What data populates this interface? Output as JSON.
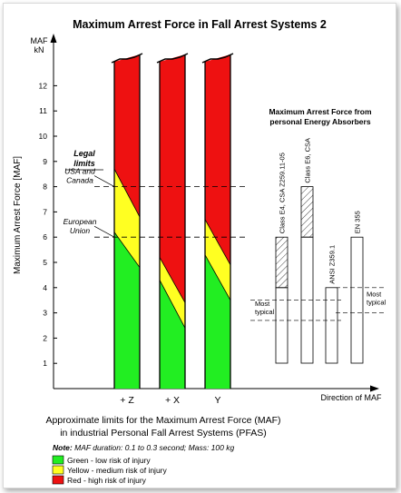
{
  "chart_data": {
    "type": "bar",
    "title": "Maximum Arrest Force in Fall Arrest Systems 2",
    "ylabel": "Maximum Arrest Force [MAF]",
    "y_unit_top": "MAF",
    "y_unit_bottom": "kN",
    "xlabel": "Direction of MAF",
    "ylim": [
      0,
      12.5
    ],
    "y_ticks": [
      1,
      2,
      3,
      4,
      5,
      6,
      7,
      8,
      9,
      10,
      11,
      12
    ],
    "directions": [
      {
        "label": "+ Z",
        "green": {
          "left": 6.2,
          "right": 4.8
        },
        "yellow": {
          "left": 8.7,
          "right": 6.8
        },
        "red": {
          "left": 12.7,
          "right": 10.5
        }
      },
      {
        "label": "+ X",
        "green": {
          "left": 4.3,
          "right": 2.4
        },
        "yellow": {
          "left": 5.2,
          "right": 3.4
        },
        "red": {
          "left": 12.5,
          "right": 12.5
        }
      },
      {
        "label": "Y",
        "green": {
          "left": 5.3,
          "right": 3.5
        },
        "yellow": {
          "left": 6.7,
          "right": 4.9
        },
        "red": {
          "left": 12.5,
          "right": 12.5
        }
      }
    ],
    "legal_limits": {
      "heading": "Legal limits",
      "limits": [
        {
          "label_lines": [
            "USA and",
            "Canada"
          ],
          "value": 8
        },
        {
          "label_lines": [
            "European",
            "Union"
          ],
          "value": 6
        }
      ]
    },
    "absorbers": {
      "title_lines": [
        "Maximum Arrest Force from",
        "personal Energy Absorbers"
      ],
      "items": [
        {
          "label": "Class E4, CSA Z259.11-05",
          "most_typical": 4,
          "max": 6
        },
        {
          "label": "Class E6, CSA",
          "most_typical": 6,
          "max": 8
        },
        {
          "label": "ANSI Z359.1",
          "most_typical": 4,
          "max": 4
        },
        {
          "label": "EN 355",
          "most_typical": 6,
          "max": 6
        }
      ],
      "most_typical_label_lines": [
        "Most",
        "typical"
      ],
      "most_typical_band_left": [
        2.7,
        3.5
      ],
      "most_typical_band_right": [
        3.0,
        4.0
      ]
    },
    "caption_lines": [
      "Approximate limits for the Maximum Arrest Force (MAF)",
      "in industrial Personal Fall Arrest Systems (PFAS)"
    ]
  },
  "note": {
    "prefix": "Note:",
    "text": " MAF duration: 0.1 to 0.3 second;   Mass: 100 kg"
  },
  "legend": [
    {
      "name": "Green",
      "desc": " - low risk of injury",
      "color": "#22ee22"
    },
    {
      "name": "Yellow",
      "desc": " - medium risk of injury",
      "color": "#ffff22"
    },
    {
      "name": "Red",
      "desc": " - high risk of injury",
      "color": "#ee1111"
    }
  ],
  "colors": {
    "green": "#22ee22",
    "yellow": "#ffff22",
    "red": "#ee1111"
  }
}
